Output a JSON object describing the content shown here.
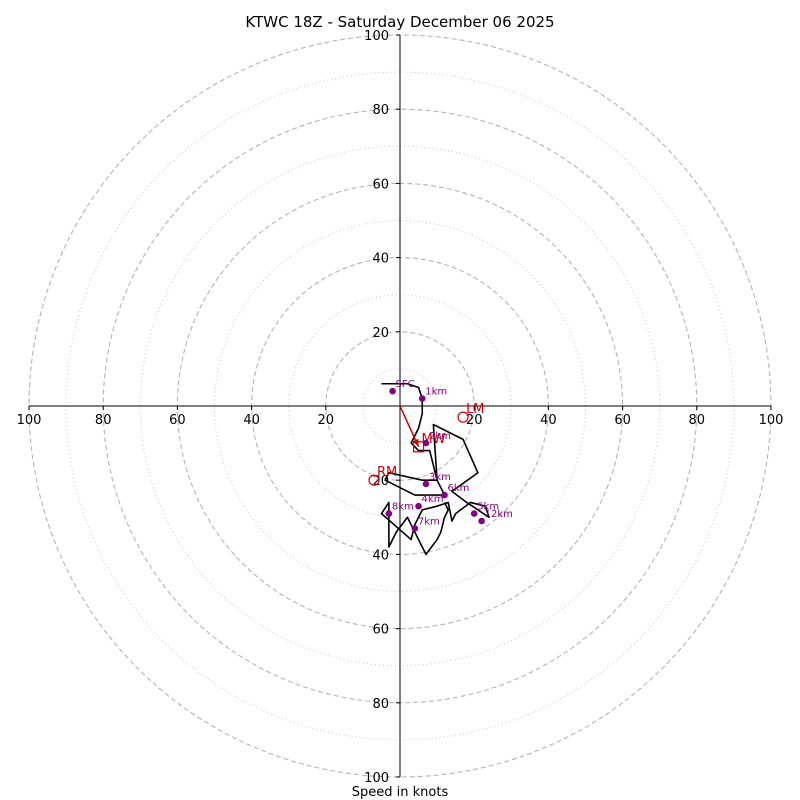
{
  "title": "KTWC 18Z - Saturday December 06 2025",
  "chart_data": {
    "type": "hodograph",
    "title": "KTWC 18Z - Saturday December 06 2025",
    "xlabel": "Speed in knots",
    "ylabel": "",
    "xlim": [
      -100,
      100
    ],
    "ylim": [
      -100,
      100
    ],
    "ring_dashed": [
      20,
      40,
      60,
      80,
      100
    ],
    "ring_dotted": [
      10,
      30,
      50,
      70,
      90
    ],
    "x_tick_labels": [
      "100",
      "80",
      "60",
      "40",
      "20",
      "20",
      "40",
      "60",
      "80",
      "100"
    ],
    "x_tick_values": [
      -100,
      -80,
      -60,
      -40,
      -20,
      20,
      40,
      60,
      80,
      100
    ],
    "y_tick_labels": [
      "100",
      "80",
      "60",
      "40",
      "20",
      "20",
      "40",
      "60",
      "80",
      "100"
    ],
    "y_tick_values": [
      100,
      80,
      60,
      40,
      20,
      -20,
      -40,
      -60,
      -80,
      -100
    ],
    "trace": {
      "color": "#000000",
      "points": [
        [
          -5,
          6
        ],
        [
          -3,
          6
        ],
        [
          2,
          6
        ],
        [
          5,
          5
        ],
        [
          6,
          2
        ],
        [
          6,
          -2
        ],
        [
          5,
          -6
        ],
        [
          3,
          -10
        ],
        [
          5,
          -12
        ],
        [
          8,
          -12
        ],
        [
          10,
          -20
        ],
        [
          6,
          -20
        ],
        [
          -3,
          -18
        ],
        [
          -4,
          -20
        ],
        [
          4,
          -24
        ],
        [
          7,
          -24
        ],
        [
          12,
          -24
        ],
        [
          10,
          -20
        ],
        [
          9,
          -5
        ],
        [
          17,
          -9
        ],
        [
          21,
          -18
        ],
        [
          14,
          -23
        ],
        [
          18,
          -26
        ],
        [
          24,
          -30
        ],
        [
          23,
          -27
        ],
        [
          19,
          -26
        ],
        [
          15,
          -29
        ],
        [
          14,
          -31
        ],
        [
          13,
          -26
        ],
        [
          10,
          -27
        ],
        [
          6,
          -28
        ],
        [
          4,
          -32
        ],
        [
          3,
          -36
        ],
        [
          -5,
          -29
        ],
        [
          -3,
          -26
        ],
        [
          -3,
          -38
        ],
        [
          -1,
          -34
        ],
        [
          2,
          -30
        ],
        [
          7,
          -40
        ],
        [
          10,
          -36
        ],
        [
          11,
          -34
        ],
        [
          12,
          -30
        ],
        [
          13,
          -28
        ],
        [
          12,
          -26
        ]
      ]
    },
    "height_markers": [
      {
        "label": "SFC",
        "u": -2,
        "v": 4
      },
      {
        "label": "1km",
        "u": 6,
        "v": 2
      },
      {
        "label": "2km",
        "u": 7,
        "v": -10
      },
      {
        "label": "3km",
        "u": 7,
        "v": -21
      },
      {
        "label": "4km",
        "u": 5,
        "v": -27
      },
      {
        "label": "5km",
        "u": 20,
        "v": -29
      },
      {
        "label": "6km",
        "u": 12,
        "v": -24
      },
      {
        "label": "7km",
        "u": 4,
        "v": -33
      },
      {
        "label": "8km",
        "u": -3,
        "v": -29
      },
      {
        "label": "12km",
        "u": 22,
        "v": -31
      }
    ],
    "marker_color": "#800080",
    "mean_wind_vector": {
      "from": [
        0,
        0
      ],
      "to": [
        5,
        -11
      ],
      "color": "#cc0000"
    },
    "storm_motion": [
      {
        "label": "LM",
        "u": 17,
        "v": -3,
        "symbol": "circle"
      },
      {
        "label": "MW",
        "u": 5,
        "v": -11,
        "symbol": "square"
      },
      {
        "label": "RM",
        "u": -7,
        "v": -20,
        "symbol": "circle"
      }
    ],
    "storm_color": "#cc0000"
  }
}
